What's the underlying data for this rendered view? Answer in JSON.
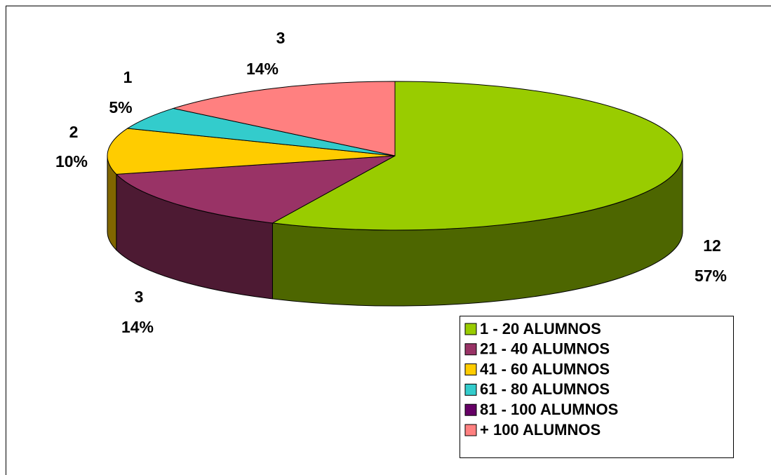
{
  "chart_data": {
    "type": "pie3d",
    "categories": [
      "1 - 20 ALUMNOS",
      "21 - 40 ALUMNOS",
      "41 - 60 ALUMNOS",
      "61 - 80 ALUMNOS",
      "81 - 100 ALUMNOS",
      "+ 100 ALUMNOS"
    ],
    "values": [
      57,
      14,
      10,
      5,
      0,
      14
    ],
    "value_labels": [
      "57%",
      "14%",
      "10%",
      "5%",
      null,
      "14%"
    ],
    "counts": [
      12,
      3,
      2,
      1,
      null,
      3
    ],
    "colors": [
      "#99cc00",
      "#993366",
      "#ffcc00",
      "#33cccc",
      "#660066",
      "#ff8080"
    ],
    "legend": "bottom-right"
  }
}
